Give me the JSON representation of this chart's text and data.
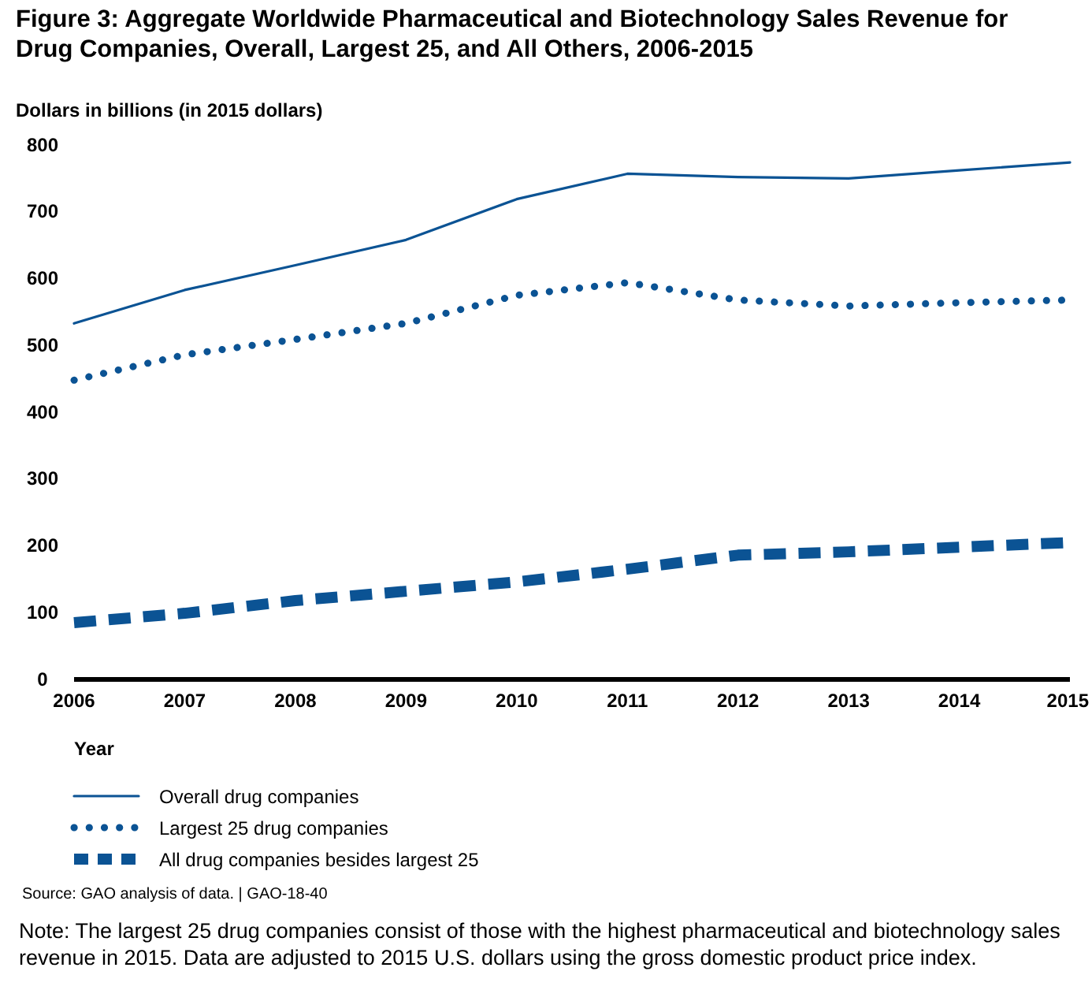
{
  "chart_data": {
    "type": "line",
    "title": "Figure 3: Aggregate Worldwide Pharmaceutical and Biotechnology Sales Revenue for Drug Companies, Overall, Largest 25, and All Others, 2006-2015",
    "ylabel": "Dollars in billions (in 2015 dollars)",
    "xlabel": "Year",
    "x": [
      2006,
      2007,
      2008,
      2009,
      2010,
      2011,
      2012,
      2013,
      2014,
      2015
    ],
    "xlim": [
      2006,
      2015
    ],
    "xticks": [
      2006,
      2007,
      2008,
      2009,
      2010,
      2011,
      2012,
      2013,
      2014,
      2015
    ],
    "ylim": [
      0,
      800
    ],
    "yticks": [
      0,
      100,
      200,
      300,
      400,
      500,
      600,
      700,
      800
    ],
    "grid": false,
    "legend": "bottom",
    "series": [
      {
        "name": "Overall drug companies",
        "color": "#0b5394",
        "line_style": "solid",
        "values": [
          533,
          583,
          620,
          658,
          719,
          757,
          752,
          750,
          762,
          774
        ]
      },
      {
        "name": "Largest 25 drug companies",
        "color": "#0b5394",
        "line_style": "dotted",
        "values": [
          448,
          486,
          509,
          533,
          575,
          594,
          568,
          559,
          564,
          568
        ]
      },
      {
        "name": "All drug companies besides largest 25",
        "color": "#0b5394",
        "line_style": "dashed",
        "values": [
          85,
          99,
          118,
          132,
          146,
          165,
          186,
          191,
          198,
          205
        ]
      }
    ],
    "annotations": [
      "Source: GAO analysis of data.  |  GAO-18-40",
      "Note: The largest 25 drug companies consist of those with the highest pharmaceutical and biotechnology sales revenue in 2015. Data are adjusted to 2015 U.S. dollars using the gross domestic product price index."
    ]
  }
}
